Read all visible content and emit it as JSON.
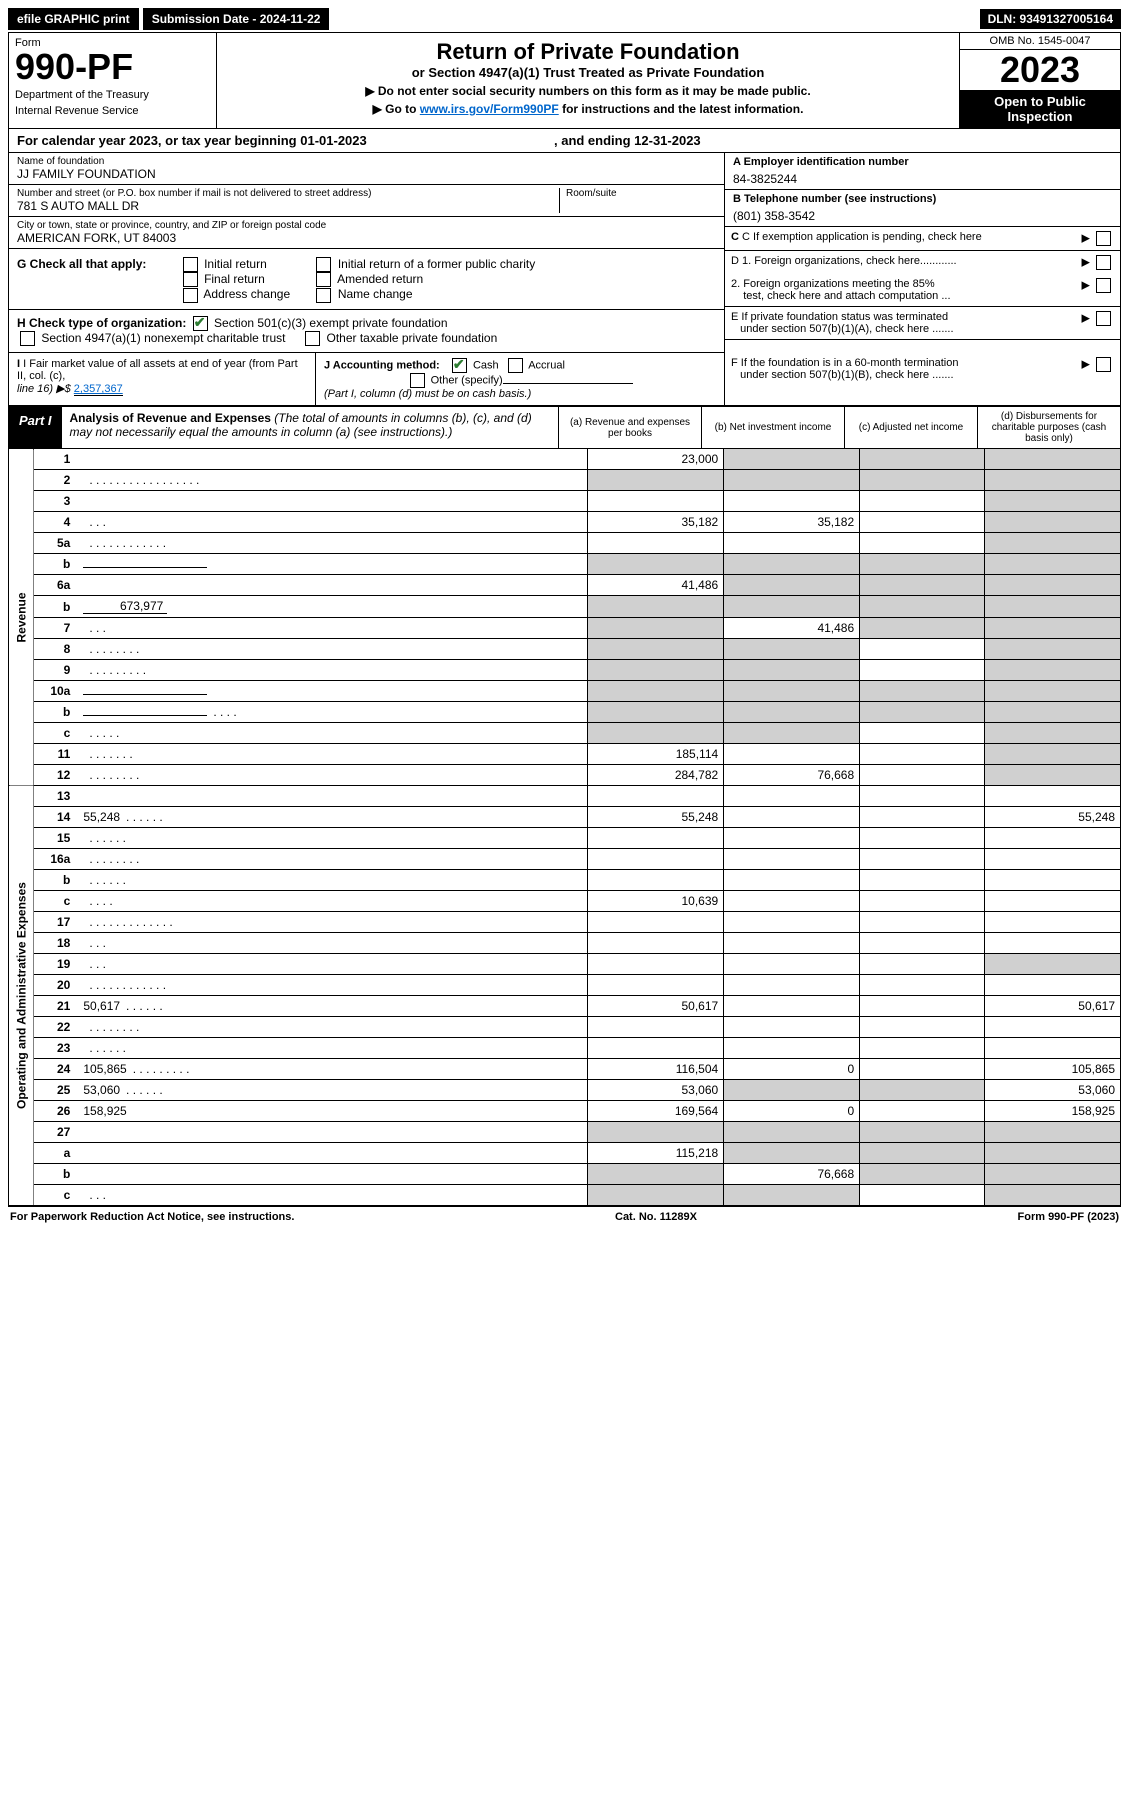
{
  "topbar": {
    "efile": "efile GRAPHIC print",
    "submission_label": "Submission Date - 2024-11-22",
    "dln_label": "DLN: 93491327005164"
  },
  "header": {
    "form_label": "Form",
    "form_number": "990-PF",
    "dept1": "Department of the Treasury",
    "dept2": "Internal Revenue Service",
    "title": "Return of Private Foundation",
    "subtitle": "or Section 4947(a)(1) Trust Treated as Private Foundation",
    "note1": "▶ Do not enter social security numbers on this form as it may be made public.",
    "note2_pre": "▶ Go to ",
    "note2_link": "www.irs.gov/Form990PF",
    "note2_post": " for instructions and the latest information.",
    "omb": "OMB No. 1545-0047",
    "year": "2023",
    "open1": "Open to Public",
    "open2": "Inspection"
  },
  "cal_year": {
    "pre": "For calendar year 2023, or tax year beginning ",
    "begin": "01-01-2023",
    "mid": " , and ending ",
    "end": "12-31-2023"
  },
  "name": {
    "label": "Name of foundation",
    "value": "JJ FAMILY FOUNDATION"
  },
  "ein": {
    "label": "A Employer identification number",
    "value": "84-3825244"
  },
  "addr": {
    "label": "Number and street (or P.O. box number if mail is not delivered to street address)",
    "value": "781 S AUTO MALL DR",
    "room_label": "Room/suite"
  },
  "phone": {
    "label": "B Telephone number (see instructions)",
    "value": "(801) 358-3542"
  },
  "city": {
    "label": "City or town, state or province, country, and ZIP or foreign postal code",
    "value": "AMERICAN FORK, UT  84003"
  },
  "boxC": "C If exemption application is pending, check here",
  "boxG": {
    "label": "G Check all that apply:",
    "o1": "Initial return",
    "o2": "Final return",
    "o3": "Address change",
    "o4": "Initial return of a former public charity",
    "o5": "Amended return",
    "o6": "Name change"
  },
  "boxD": {
    "d1": "D 1. Foreign organizations, check here............",
    "d2a": "2. Foreign organizations meeting the 85%",
    "d2b": "test, check here and attach computation ..."
  },
  "boxH": {
    "label": "H Check type of organization:",
    "o1": "Section 501(c)(3) exempt private foundation",
    "o2": "Section 4947(a)(1) nonexempt charitable trust",
    "o3": "Other taxable private foundation"
  },
  "boxE": {
    "e1": "E  If private foundation status was terminated",
    "e2": "under section 507(b)(1)(A), check here ......."
  },
  "boxI": {
    "label": "I Fair market value of all assets at end of year (from Part II, col. (c),",
    "line16": "line 16) ▶$ ",
    "value": "2,357,367"
  },
  "boxJ": {
    "label": "J Accounting method:",
    "o1": "Cash",
    "o2": "Accrual",
    "o3": "Other (specify)",
    "note": "(Part I, column (d) must be on cash basis.)"
  },
  "boxF": {
    "f1": "F  If the foundation is in a 60-month termination",
    "f2": "under section 507(b)(1)(B), check here ......."
  },
  "part1": {
    "tag": "Part I",
    "title": "Analysis of Revenue and Expenses",
    "title_note": " (The total of amounts in columns (b), (c), and (d) may not necessarily equal the amounts in column (a) (see instructions).)",
    "col_a": "(a)    Revenue and expenses per books",
    "col_b": "(b)    Net investment income",
    "col_c": "(c)    Adjusted net income",
    "col_d": "(d)    Disbursements for charitable purposes (cash basis only)"
  },
  "side_labels": {
    "rev": "Revenue",
    "exp": "Operating and Administrative Expenses"
  },
  "lines": [
    {
      "n": "1",
      "d": "",
      "a": "23,000",
      "b": "",
      "c": "",
      "gb": true,
      "gc": true,
      "gd": true
    },
    {
      "n": "2",
      "d": "",
      "dots": ". . . . . . . . . . . . . . . . .",
      "a": "",
      "b": "",
      "c": "",
      "ga": true,
      "gb": true,
      "gc": true,
      "gd": true
    },
    {
      "n": "3",
      "d": "",
      "a": "",
      "b": "",
      "c": "",
      "gd": true
    },
    {
      "n": "4",
      "d": "",
      "dots": ".   .   .",
      "a": "35,182",
      "b": "35,182",
      "c": "",
      "gd": true
    },
    {
      "n": "5a",
      "d": "",
      "dots": ".   .   .   .   .   .   .   .   .   .   .   .",
      "a": "",
      "b": "",
      "c": "",
      "gd": true
    },
    {
      "n": "b",
      "d": "",
      "a": "",
      "b": "",
      "c": "",
      "ga": true,
      "gb": true,
      "gc": true,
      "gd": true,
      "inline": true
    },
    {
      "n": "6a",
      "d": "",
      "a": "41,486",
      "b": "",
      "c": "",
      "gb": true,
      "gc": true,
      "gd": true
    },
    {
      "n": "b",
      "d": "",
      "inline_val": "673,977",
      "a": "",
      "b": "",
      "c": "",
      "ga": true,
      "gb": true,
      "gc": true,
      "gd": true
    },
    {
      "n": "7",
      "d": "",
      "dots": ".   .   .",
      "a": "",
      "b": "41,486",
      "c": "",
      "ga": true,
      "gc": true,
      "gd": true
    },
    {
      "n": "8",
      "d": "",
      "dots": ".   .   .   .   .   .   .   .",
      "a": "",
      "b": "",
      "c": "",
      "ga": true,
      "gb": true,
      "gd": true
    },
    {
      "n": "9",
      "d": "",
      "dots": ".   .   .   .   .   .   .   .   .",
      "a": "",
      "b": "",
      "c": "",
      "ga": true,
      "gb": true,
      "gd": true
    },
    {
      "n": "10a",
      "d": "",
      "a": "",
      "b": "",
      "c": "",
      "ga": true,
      "gb": true,
      "gc": true,
      "gd": true,
      "inline": true
    },
    {
      "n": "b",
      "d": "",
      "dots": ".   .   .   .",
      "a": "",
      "b": "",
      "c": "",
      "ga": true,
      "gb": true,
      "gc": true,
      "gd": true,
      "inline": true
    },
    {
      "n": "c",
      "d": "",
      "dots": ".   .   .   .   .",
      "a": "",
      "b": "",
      "c": "",
      "ga": true,
      "gb": true,
      "gd": true
    },
    {
      "n": "11",
      "d": "",
      "dots": ".   .   .   .   .   .   .",
      "a": "185,114",
      "b": "",
      "c": "",
      "gd": true
    },
    {
      "n": "12",
      "d": "",
      "dots": ".   .   .   .   .   .   .   .",
      "a": "284,782",
      "b": "76,668",
      "c": "",
      "gd": true
    }
  ],
  "exp_lines": [
    {
      "n": "13",
      "d": "",
      "a": "",
      "b": "",
      "c": ""
    },
    {
      "n": "14",
      "d": "55,248",
      "dots": ".   .   .   .   .   .",
      "a": "55,248",
      "b": "",
      "c": ""
    },
    {
      "n": "15",
      "d": "",
      "dots": ".   .   .   .   .   .",
      "a": "",
      "b": "",
      "c": ""
    },
    {
      "n": "16a",
      "d": "",
      "dots": ".   .   .   .   .   .   .   .",
      "a": "",
      "b": "",
      "c": ""
    },
    {
      "n": "b",
      "d": "",
      "dots": ".   .   .   .   .   .",
      "a": "",
      "b": "",
      "c": ""
    },
    {
      "n": "c",
      "d": "",
      "dots": ".   .   .   .",
      "a": "10,639",
      "b": "",
      "c": ""
    },
    {
      "n": "17",
      "d": "",
      "dots": ".   .   .   .   .   .   .   .   .   .   .   .   .",
      "a": "",
      "b": "",
      "c": ""
    },
    {
      "n": "18",
      "d": "",
      "dots": ".   .   .",
      "a": "",
      "b": "",
      "c": ""
    },
    {
      "n": "19",
      "d": "",
      "dots": ".   .   .",
      "a": "",
      "b": "",
      "c": "",
      "gd": true
    },
    {
      "n": "20",
      "d": "",
      "dots": ".   .   .   .   .   .   .   .   .   .   .   .",
      "a": "",
      "b": "",
      "c": ""
    },
    {
      "n": "21",
      "d": "50,617",
      "dots": ".   .   .   .   .   .",
      "a": "50,617",
      "b": "",
      "c": ""
    },
    {
      "n": "22",
      "d": "",
      "dots": ".   .   .   .   .   .   .   .",
      "a": "",
      "b": "",
      "c": ""
    },
    {
      "n": "23",
      "d": "",
      "dots": ".   .   .   .   .   .",
      "a": "",
      "b": "",
      "c": ""
    },
    {
      "n": "24",
      "d": "105,865",
      "dots": ".   .   .   .   .   .   .   .   .",
      "a": "116,504",
      "b": "0",
      "c": ""
    },
    {
      "n": "25",
      "d": "53,060",
      "dots": ".   .   .   .   .   .",
      "a": "53,060",
      "b": "",
      "c": "",
      "gb": true,
      "gc": true
    },
    {
      "n": "26",
      "d": "158,925",
      "a": "169,564",
      "b": "0",
      "c": ""
    },
    {
      "n": "27",
      "d": "",
      "a": "",
      "b": "",
      "c": "",
      "ga": true,
      "gb": true,
      "gc": true,
      "gd": true
    },
    {
      "n": "a",
      "d": "",
      "a": "115,218",
      "b": "",
      "c": "",
      "gb": true,
      "gc": true,
      "gd": true
    },
    {
      "n": "b",
      "d": "",
      "a": "",
      "b": "76,668",
      "c": "",
      "ga": true,
      "gc": true,
      "gd": true
    },
    {
      "n": "c",
      "d": "",
      "dots": ".   .   .",
      "a": "",
      "b": "",
      "c": "",
      "ga": true,
      "gb": true,
      "gd": true
    }
  ],
  "footer": {
    "left": "For Paperwork Reduction Act Notice, see instructions.",
    "mid": "Cat. No. 11289X",
    "right": "Form 990-PF (2023)"
  },
  "colors": {
    "black": "#000000",
    "grey": "#d0d0d0",
    "link": "#0066cc",
    "check": "#2e7d32"
  }
}
